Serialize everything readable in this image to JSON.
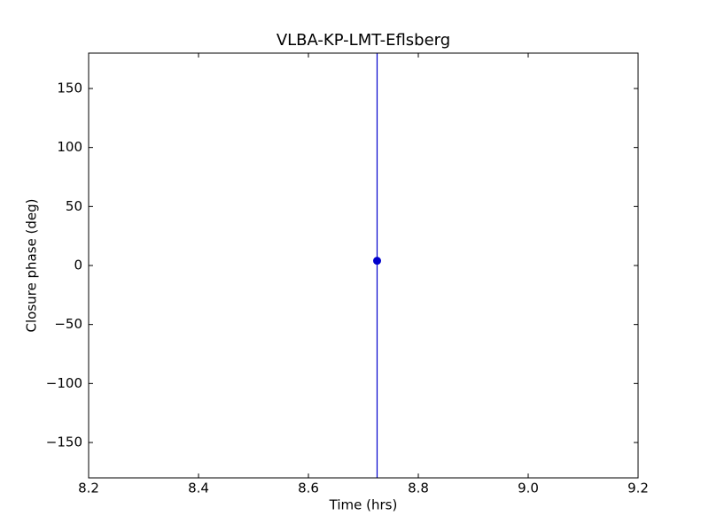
{
  "chart_data": {
    "type": "scatter",
    "title": "VLBA-KP-LMT-Eflsberg",
    "xlabel": "Time (hrs)",
    "ylabel": "Closure phase (deg)",
    "x": [
      8.725
    ],
    "values": [
      4
    ],
    "errors": [
      200
    ],
    "color": "#0000cc",
    "xlim": [
      8.2,
      9.2
    ],
    "ylim": [
      -180,
      180
    ],
    "xticks": [
      8.2,
      8.4,
      8.6,
      8.8,
      {
        "value": 9,
        "label": "9.0"
      },
      9.2
    ],
    "yticks": [
      {
        "value": -150,
        "label": "−150"
      },
      {
        "value": -100,
        "label": "−100"
      },
      {
        "value": -50,
        "label": "−50"
      },
      0,
      50,
      100,
      150
    ]
  }
}
